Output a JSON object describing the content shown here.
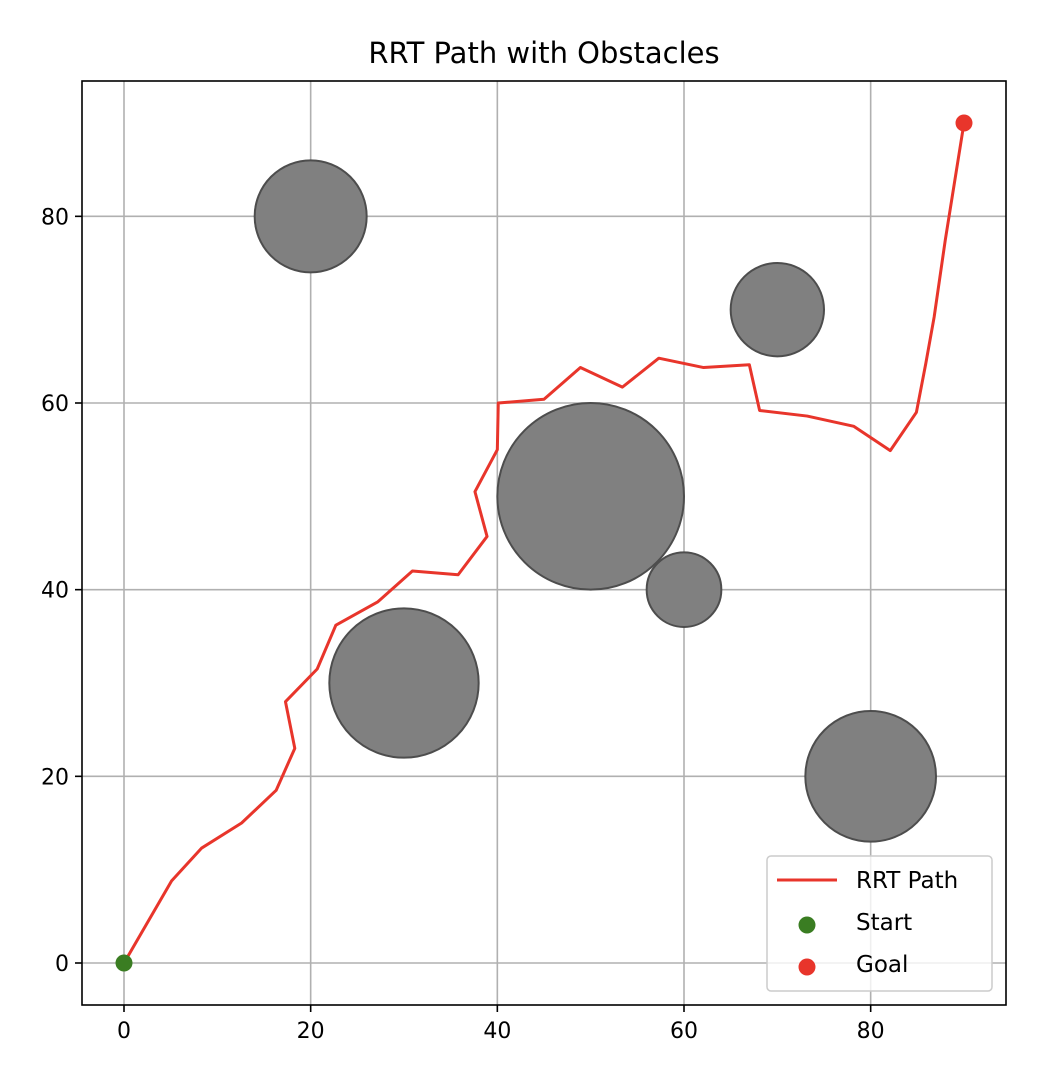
{
  "chart_data": {
    "type": "line",
    "title": "RRT Path with Obstacles",
    "xlabel": "",
    "ylabel": "",
    "xlim": [
      -4.5,
      94.5
    ],
    "ylim": [
      -4.5,
      94.5
    ],
    "x_ticks": [
      0,
      20,
      40,
      60,
      80
    ],
    "y_ticks": [
      0,
      20,
      40,
      60,
      80
    ],
    "grid": true,
    "legend_position": "lower-right",
    "colors": {
      "path": "#e8352b",
      "start": "#3a7d22",
      "goal": "#e8352b",
      "obstacle": "#808080",
      "obstacle_edge": "#4d4d4d"
    },
    "obstacles": [
      {
        "name": "obstacle",
        "center": [
          20,
          80
        ],
        "radius": 6
      },
      {
        "name": "obstacle",
        "center": [
          70,
          70
        ],
        "radius": 5
      },
      {
        "name": "obstacle",
        "center": [
          50,
          50
        ],
        "radius": 10
      },
      {
        "name": "obstacle",
        "center": [
          60,
          40
        ],
        "radius": 4
      },
      {
        "name": "obstacle",
        "center": [
          30,
          30
        ],
        "radius": 8
      },
      {
        "name": "obstacle",
        "center": [
          80,
          20
        ],
        "radius": 7
      }
    ],
    "series": [
      {
        "name": "RRT Path",
        "type": "line",
        "points": [
          [
            0,
            0
          ],
          [
            5.1,
            8.8
          ],
          [
            8.3,
            12.3
          ],
          [
            12.6,
            15.0
          ],
          [
            16.3,
            18.5
          ],
          [
            18.3,
            23.0
          ],
          [
            17.3,
            28.0
          ],
          [
            20.7,
            31.5
          ],
          [
            22.7,
            36.2
          ],
          [
            27.2,
            38.7
          ],
          [
            30.9,
            42.0
          ],
          [
            35.8,
            41.6
          ],
          [
            38.9,
            45.7
          ],
          [
            37.6,
            50.5
          ],
          [
            40.0,
            55.0
          ],
          [
            40.1,
            60.0
          ],
          [
            45.0,
            60.4
          ],
          [
            48.9,
            63.8
          ],
          [
            53.4,
            61.7
          ],
          [
            57.3,
            64.8
          ],
          [
            62.1,
            63.8
          ],
          [
            67.0,
            64.1
          ],
          [
            68.1,
            59.2
          ],
          [
            73.2,
            58.6
          ],
          [
            78.2,
            57.5
          ],
          [
            82.1,
            54.9
          ],
          [
            84.9,
            59.0
          ],
          [
            85.9,
            64.2
          ],
          [
            86.8,
            69.2
          ],
          [
            88.0,
            77.5
          ],
          [
            90.0,
            90.0
          ]
        ]
      },
      {
        "name": "Start",
        "type": "scatter",
        "points": [
          [
            0,
            0
          ]
        ]
      },
      {
        "name": "Goal",
        "type": "scatter",
        "points": [
          [
            90,
            90
          ]
        ]
      }
    ]
  }
}
